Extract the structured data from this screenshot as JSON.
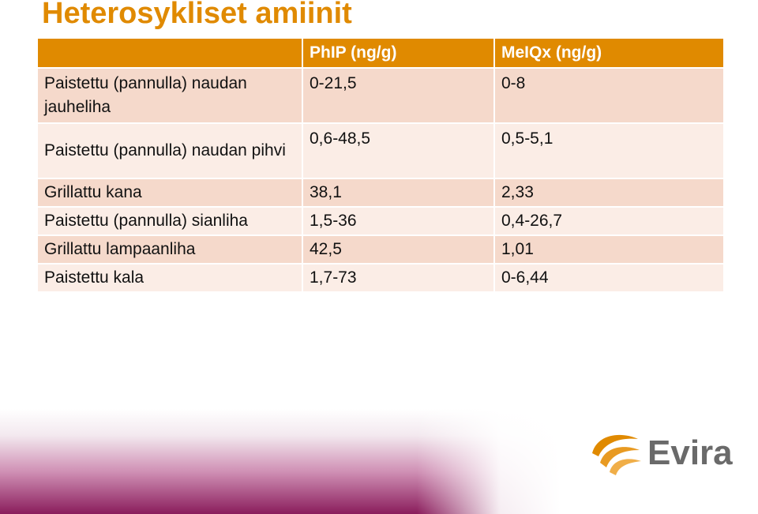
{
  "slide": {
    "title": "Heterosykliset amiinit"
  },
  "table": {
    "headers": [
      "",
      "PhIP (ng/g)",
      "MeIQx (ng/g)"
    ],
    "rows": [
      {
        "food": "Paistettu (pannulla) naudan jauheliha",
        "phip": "0-21,5",
        "meiqx": "0-8"
      },
      {
        "food": "Paistettu (pannulla) naudan pihvi",
        "phip": "0,6-48,5",
        "meiqx": "0,5-5,1"
      },
      {
        "food": "Grillattu kana",
        "phip": "38,1",
        "meiqx": "2,33"
      },
      {
        "food": "Paistettu (pannulla) sianliha",
        "phip": "1,5-36",
        "meiqx": "0,4-26,7"
      },
      {
        "food": "Grillattu lampaanliha",
        "phip": "42,5",
        "meiqx": "1,01"
      },
      {
        "food": "Paistettu kala",
        "phip": "1,7-73",
        "meiqx": "0-6,44"
      }
    ]
  },
  "logo": {
    "wordmark": "Evira",
    "icon": "evira-swirl-logo-icon"
  },
  "colors": {
    "accent": "#E08A00",
    "row_dark": "#F5D9CB",
    "row_light": "#FBEDE6",
    "footer_purple": "#8A1D5C",
    "logo_gray": "#6A6A6A"
  }
}
